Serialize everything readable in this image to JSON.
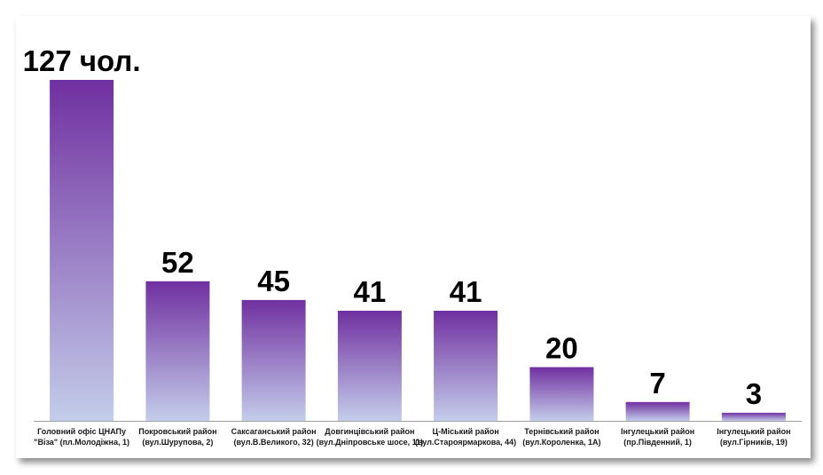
{
  "chart_data": {
    "type": "bar",
    "categories": [
      [
        "Головний офіс ЦНАПу",
        "\"Віза\" (пл.Молодіжна, 1)"
      ],
      [
        "Покровський район",
        "(вул.Шурупова, 2)"
      ],
      [
        "Саксаганський район",
        "(вул.В.Великого, 32)"
      ],
      [
        "Довгинцівський район",
        "(вул.Дніпровське шосе, 11)"
      ],
      [
        "Ц-Міський район",
        "(вул.Староярмаркова, 44)"
      ],
      [
        "Тернівський район",
        "(вул.Короленка, 1А)"
      ],
      [
        "Інгулецький район",
        "(пр.Південний, 1)"
      ],
      [
        "Інгулецький район",
        "(вул.Гірників, 19)"
      ]
    ],
    "values": [
      127,
      52,
      45,
      41,
      41,
      20,
      7,
      3
    ],
    "value_labels": [
      "127 чол.",
      "52",
      "45",
      "41",
      "41",
      "20",
      "7",
      "3"
    ],
    "ylim": [
      0,
      127
    ],
    "grid": false,
    "legend": "none",
    "colors": {
      "bar_top": "#7030a0",
      "bar_bottom": "#c4cdea",
      "axis": "#a0a0a0"
    }
  }
}
